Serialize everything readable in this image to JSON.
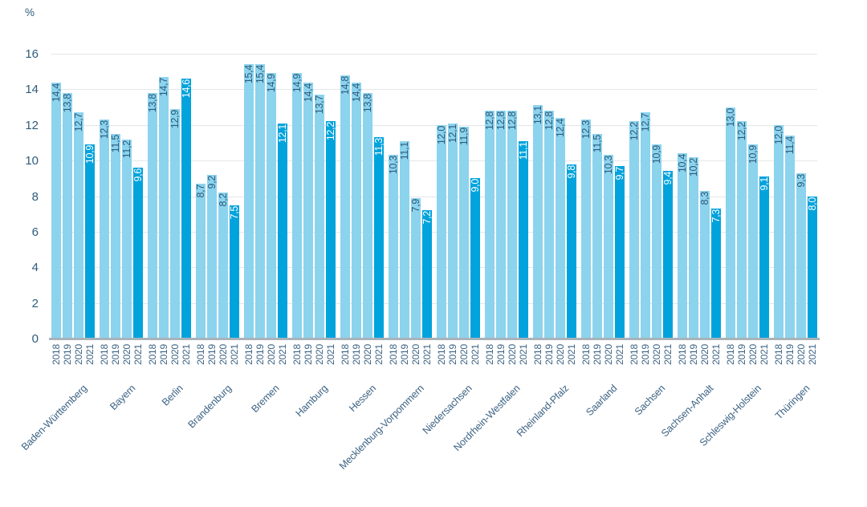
{
  "chart_data": {
    "type": "bar",
    "title": "",
    "unit": "%",
    "ylim": [
      0,
      16
    ],
    "grid": "horizontal",
    "y_ticks": [
      "16",
      "14",
      "12",
      "10",
      "8",
      "6",
      "4",
      "2",
      "0"
    ],
    "years": [
      "2018",
      "2019",
      "2020",
      "2021"
    ],
    "colors": {
      "bar_2018_2020": "#8cd3ee",
      "bar_2021": "#00a3dc",
      "value_label_on_light": "#2b5b7c",
      "value_label_on_dark": "#ffffff",
      "axis_text": "#3c6384"
    },
    "groups": [
      {
        "state": "Baden-Württemberg",
        "values": [
          "14,4",
          "13,8",
          "12,7",
          "10,9"
        ]
      },
      {
        "state": "Bayern",
        "values": [
          "12,3",
          "11,5",
          "11,2",
          "9,6"
        ]
      },
      {
        "state": "Berlin",
        "values": [
          "13,8",
          "14,7",
          "12,9",
          "14,6"
        ]
      },
      {
        "state": "Brandenburg",
        "values": [
          "8,7",
          "9,2",
          "8,2",
          "7,5"
        ]
      },
      {
        "state": "Bremen",
        "values": [
          "15,4",
          "15,4",
          "14,9",
          "12,1"
        ]
      },
      {
        "state": "Hamburg",
        "values": [
          "14,9",
          "14,4",
          "13,7",
          "12,2"
        ]
      },
      {
        "state": "Hessen",
        "values": [
          "14,8",
          "14,4",
          "13,8",
          "11,3"
        ]
      },
      {
        "state": "Mecklenburg-Vorpommern",
        "values": [
          "10,3",
          "11,1",
          "7,9",
          "7,2"
        ]
      },
      {
        "state": "Niedersachsen",
        "values": [
          "12,0",
          "12,1",
          "11,9",
          "9,0"
        ]
      },
      {
        "state": "Nordrhein-Westfalen",
        "values": [
          "12,8",
          "12,8",
          "12,8",
          "11,1"
        ]
      },
      {
        "state": "Rheinland-Pfalz",
        "values": [
          "13,1",
          "12,8",
          "12,4",
          "9,8"
        ]
      },
      {
        "state": "Saarland",
        "values": [
          "12,3",
          "11,5",
          "10,3",
          "9,7"
        ]
      },
      {
        "state": "Sachsen",
        "values": [
          "12,2",
          "12,7",
          "10,9",
          "9,4"
        ]
      },
      {
        "state": "Sachsen-Anhalt",
        "values": [
          "10,4",
          "10,2",
          "8,3",
          "7,3"
        ]
      },
      {
        "state": "Schleswig-Holstein",
        "values": [
          "13,0",
          "12,2",
          "10,9",
          "9,1"
        ]
      },
      {
        "state": "Thüringen",
        "values": [
          "12,0",
          "11,4",
          "9,3",
          "8,0"
        ]
      }
    ]
  }
}
